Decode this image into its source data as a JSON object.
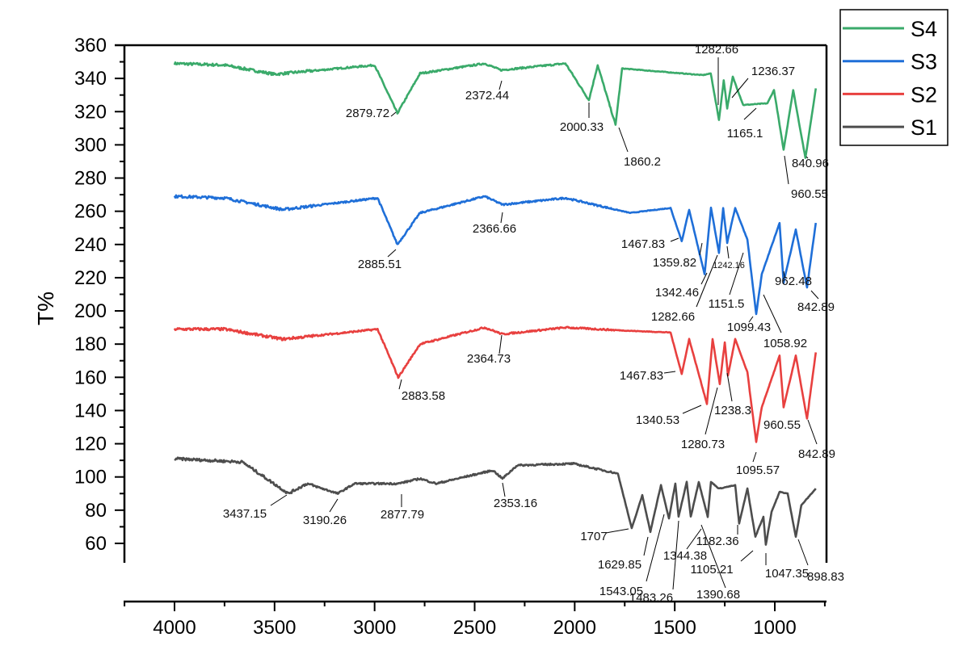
{
  "chart_data": {
    "type": "line",
    "title": "",
    "xlabel": "",
    "ylabel": "T%",
    "xlim": [
      4255,
      745
    ],
    "ylim": [
      50,
      360
    ],
    "x_reversed": true,
    "grid": false,
    "legend_placement": "top-right outside",
    "x_ticks": [
      4000,
      3500,
      3000,
      2500,
      2000,
      1500,
      1000
    ],
    "y_ticks": [
      60,
      80,
      100,
      120,
      140,
      160,
      180,
      200,
      220,
      240,
      260,
      280,
      300,
      320,
      340,
      360
    ],
    "series": [
      {
        "name": "S4",
        "color": "#3aaa6a",
        "points": [
          [
            4000,
            349
          ],
          [
            3750,
            348
          ],
          [
            3500,
            342.5
          ],
          [
            3000,
            348
          ],
          [
            2886,
            319
          ],
          [
            2773,
            343
          ],
          [
            2450,
            349
          ],
          [
            2369,
            345
          ],
          [
            2046,
            349
          ],
          [
            1929,
            327
          ],
          [
            1885,
            348
          ],
          [
            1796,
            312
          ],
          [
            1763,
            346
          ],
          [
            1360,
            342
          ],
          [
            1320,
            343
          ],
          [
            1279,
            315
          ],
          [
            1255,
            339
          ],
          [
            1238,
            322
          ],
          [
            1210,
            341
          ],
          [
            1158,
            324
          ],
          [
            1037,
            325
          ],
          [
            1004,
            333
          ],
          [
            956,
            297
          ],
          [
            908,
            333
          ],
          [
            847,
            292
          ],
          [
            795,
            334
          ]
        ],
        "annotations": [
          "2879.72",
          "2372.44",
          "2000.33",
          "1860.2",
          "1282.66",
          "1236.37",
          "1165.1",
          "840.96",
          "960.55"
        ]
      },
      {
        "name": "S3",
        "color": "#1f6fd8",
        "points": [
          [
            4000,
            269
          ],
          [
            3750,
            268
          ],
          [
            3459,
            261
          ],
          [
            2985,
            268
          ],
          [
            2886,
            240
          ],
          [
            2773,
            259
          ],
          [
            2450,
            269
          ],
          [
            2361,
            264
          ],
          [
            2046,
            268
          ],
          [
            1723,
            259
          ],
          [
            1521,
            262
          ],
          [
            1465,
            242
          ],
          [
            1428,
            261
          ],
          [
            1351,
            222
          ],
          [
            1319,
            262
          ],
          [
            1279,
            235
          ],
          [
            1258,
            262
          ],
          [
            1238,
            241
          ],
          [
            1198,
            262
          ],
          [
            1137,
            243
          ],
          [
            1093,
            198
          ],
          [
            1065,
            222
          ],
          [
            976,
            253
          ],
          [
            956,
            217
          ],
          [
            895,
            249
          ],
          [
            839,
            214
          ],
          [
            795,
            253
          ]
        ],
        "annotations": [
          "2885.51",
          "2366.66",
          "1467.83",
          "1359.82",
          "1242.16",
          "1342.46",
          "1282.66",
          "1151.5",
          "1099.43",
          "962.48",
          "1058.92",
          "842.89"
        ]
      },
      {
        "name": "S2",
        "color": "#e8403f",
        "points": [
          [
            4000,
            189
          ],
          [
            3750,
            189
          ],
          [
            3459,
            183
          ],
          [
            2985,
            189
          ],
          [
            2882,
            160
          ],
          [
            2773,
            180
          ],
          [
            2450,
            190
          ],
          [
            2361,
            186
          ],
          [
            2046,
            190
          ],
          [
            1723,
            188
          ],
          [
            1521,
            187
          ],
          [
            1465,
            162
          ],
          [
            1428,
            183
          ],
          [
            1339,
            144
          ],
          [
            1311,
            183
          ],
          [
            1275,
            156
          ],
          [
            1250,
            181
          ],
          [
            1234,
            161
          ],
          [
            1198,
            183
          ],
          [
            1137,
            163
          ],
          [
            1093,
            121
          ],
          [
            1065,
            142
          ],
          [
            976,
            173
          ],
          [
            956,
            142
          ],
          [
            895,
            173
          ],
          [
            839,
            135
          ],
          [
            795,
            175
          ]
        ],
        "annotations": [
          "2883.58",
          "2364.73",
          "1467.83",
          "1340.53",
          "1280.73",
          "1238.3",
          "960.55",
          "1095.57",
          "842.89"
        ]
      },
      {
        "name": "S1",
        "color": "#4d4d4d",
        "points": [
          [
            4000,
            111
          ],
          [
            3661,
            109
          ],
          [
            3431,
            90
          ],
          [
            3338,
            96
          ],
          [
            3184,
            90
          ],
          [
            3100,
            96
          ],
          [
            2882,
            96
          ],
          [
            2773,
            99
          ],
          [
            2692,
            96
          ],
          [
            2409,
            104
          ],
          [
            2361,
            99
          ],
          [
            2288,
            107
          ],
          [
            2006,
            108
          ],
          [
            1784,
            102
          ],
          [
            1715,
            69
          ],
          [
            1662,
            89
          ],
          [
            1622,
            67
          ],
          [
            1569,
            95
          ],
          [
            1529,
            75
          ],
          [
            1497,
            96
          ],
          [
            1481,
            76
          ],
          [
            1440,
            97
          ],
          [
            1420,
            76
          ],
          [
            1380,
            97
          ],
          [
            1335,
            76
          ],
          [
            1319,
            97
          ],
          [
            1279,
            93
          ],
          [
            1198,
            95
          ],
          [
            1178,
            72
          ],
          [
            1137,
            93
          ],
          [
            1097,
            64
          ],
          [
            1057,
            76
          ],
          [
            1045,
            59
          ],
          [
            1016,
            79
          ],
          [
            976,
            91
          ],
          [
            936,
            90
          ],
          [
            895,
            64
          ],
          [
            867,
            83
          ],
          [
            795,
            93
          ]
        ],
        "annotations": [
          "3437.15",
          "3190.26",
          "2877.79",
          "2353.16",
          "1707",
          "1629.85",
          "1543.05",
          "1483.26",
          "1344.38",
          "1390.68",
          "1182.36",
          "1105.21",
          "1047.35",
          "898.83"
        ]
      }
    ]
  }
}
